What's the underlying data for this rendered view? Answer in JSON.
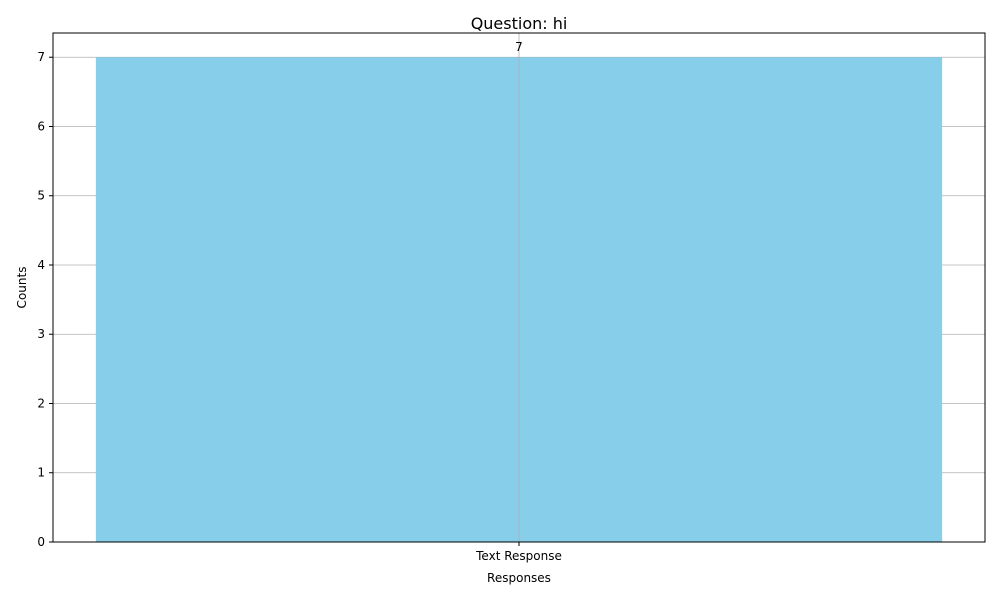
{
  "chart_data": {
    "type": "bar",
    "title": "Question: hi",
    "xlabel": "Responses",
    "ylabel": "Counts",
    "categories": [
      "Text Response"
    ],
    "values": [
      7
    ],
    "data_labels": [
      "7"
    ],
    "ylim": [
      0,
      7.35
    ],
    "yticks": [
      0,
      1,
      2,
      3,
      4,
      5,
      6,
      7
    ],
    "grid": true,
    "bar_color": "#87ceeb"
  }
}
